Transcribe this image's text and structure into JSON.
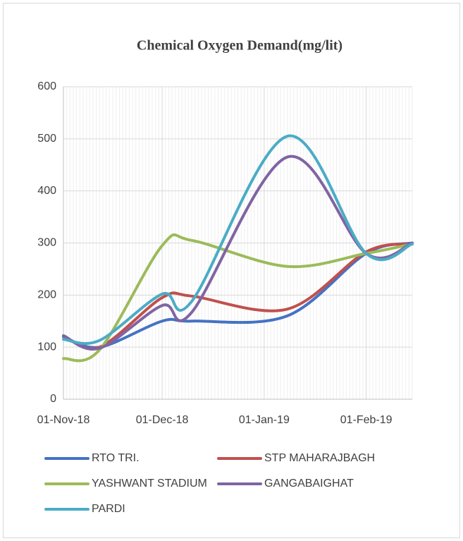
{
  "chart_data": {
    "type": "line",
    "title": "Chemical Oxygen Demand(mg/lit)",
    "x": [
      "2018-11-01",
      "2018-11-12",
      "2018-12-01",
      "2018-12-10",
      "2019-01-08",
      "2019-02-01",
      "2019-02-15"
    ],
    "series": [
      {
        "name": "RTO TRI.",
        "color": "#4472c4",
        "values": [
          120,
          100,
          150,
          150,
          160,
          280,
          300
        ]
      },
      {
        "name": "STP MAHARAJBAGH",
        "color": "#c0504d",
        "values": [
          122,
          100,
          195,
          198,
          173,
          283,
          298
        ]
      },
      {
        "name": "YASHWANT STADIUM",
        "color": "#9bbb59",
        "values": [
          78,
          95,
          295,
          305,
          255,
          280,
          298
        ]
      },
      {
        "name": "GANGABAIGHAT",
        "color": "#8064a2",
        "values": [
          122,
          98,
          180,
          167,
          465,
          280,
          300
        ]
      },
      {
        "name": "PARDI",
        "color": "#4bacc6",
        "values": [
          115,
          113,
          202,
          188,
          505,
          280,
          298
        ]
      }
    ],
    "xlim": [
      "2018-11-01",
      "2019-02-15"
    ],
    "xticks": [
      {
        "value": "2018-11-01",
        "label": "01-Nov-18"
      },
      {
        "value": "2018-12-01",
        "label": "01-Dec-18"
      },
      {
        "value": "2019-01-01",
        "label": "01-Jan-19"
      },
      {
        "value": "2019-02-01",
        "label": "01-Feb-19"
      }
    ],
    "ylim": [
      0,
      600
    ],
    "yticks": [
      0,
      100,
      200,
      300,
      400,
      500,
      600
    ],
    "grid": true,
    "minor_grid": true,
    "smooth": true,
    "legend": "bottom"
  }
}
